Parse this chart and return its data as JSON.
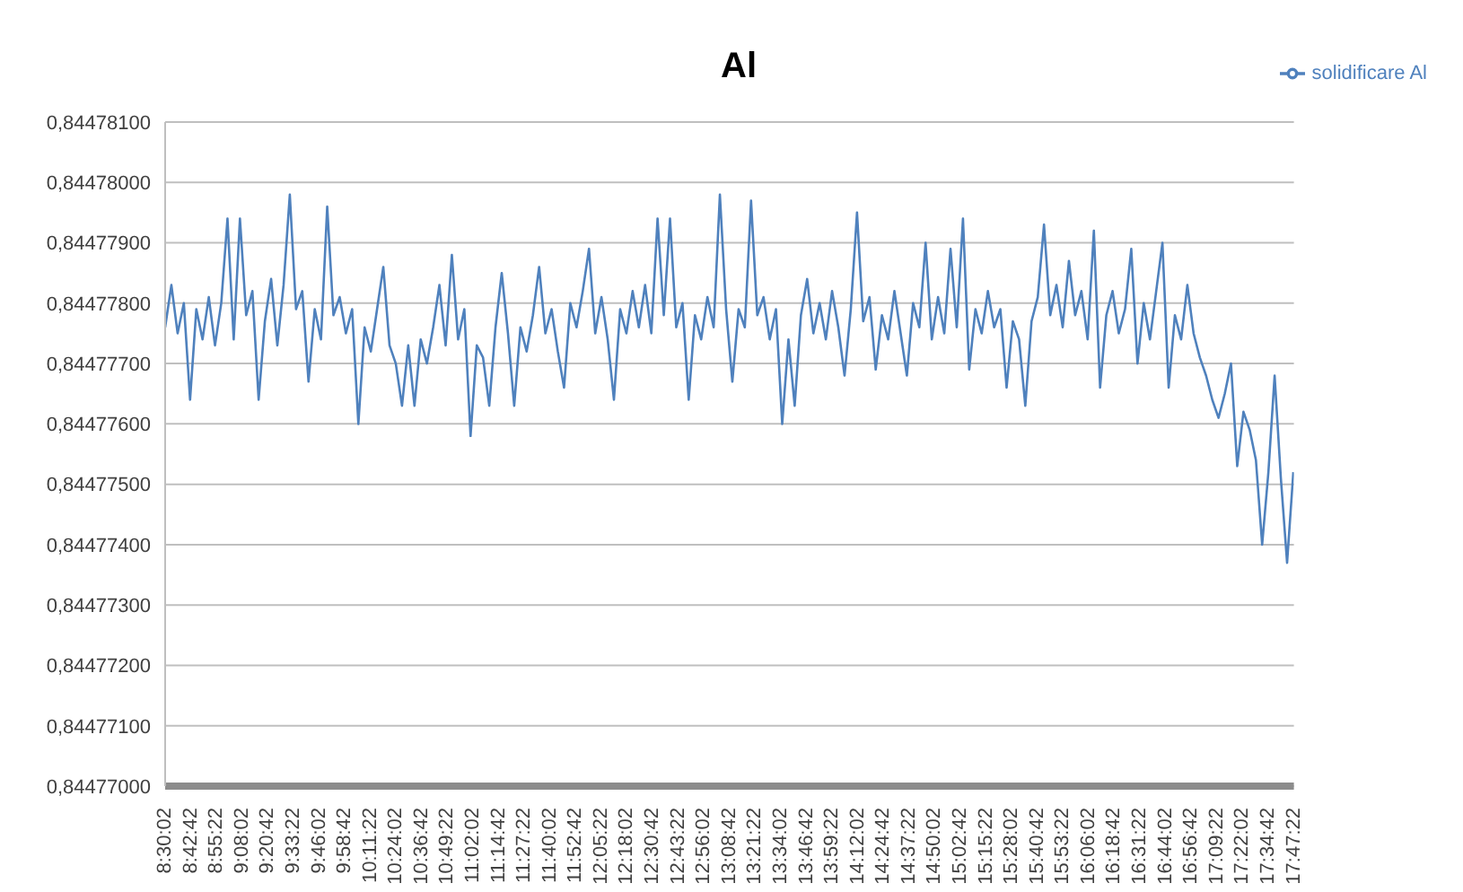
{
  "chart_data": {
    "type": "line",
    "title": "Al",
    "legend": "top right",
    "grid": "y",
    "xlim": [
      8.5,
      17.79
    ],
    "xticks": [
      {
        "value": 8.5006,
        "label": "8:30:02"
      },
      {
        "value": 8.7117,
        "label": "8:42:42"
      },
      {
        "value": 8.9228,
        "label": "8:55:22"
      },
      {
        "value": 9.1339,
        "label": "9:08:02"
      },
      {
        "value": 9.345,
        "label": "9:20:42"
      },
      {
        "value": 9.5561,
        "label": "9:33:22"
      },
      {
        "value": 9.7672,
        "label": "9:46:02"
      },
      {
        "value": 9.9783,
        "label": "9:58:42"
      },
      {
        "value": 10.1894,
        "label": "10:11:22"
      },
      {
        "value": 10.4006,
        "label": "10:24:02"
      },
      {
        "value": 10.6117,
        "label": "10:36:42"
      },
      {
        "value": 10.8228,
        "label": "10:49:22"
      },
      {
        "value": 11.0339,
        "label": "11:02:02"
      },
      {
        "value": 11.245,
        "label": "11:14:42"
      },
      {
        "value": 11.4561,
        "label": "11:27:22"
      },
      {
        "value": 11.6672,
        "label": "11:40:02"
      },
      {
        "value": 11.8783,
        "label": "11:52:42"
      },
      {
        "value": 12.0894,
        "label": "12:05:22"
      },
      {
        "value": 12.3006,
        "label": "12:18:02"
      },
      {
        "value": 12.5117,
        "label": "12:30:42"
      },
      {
        "value": 12.7228,
        "label": "12:43:22"
      },
      {
        "value": 12.9339,
        "label": "12:56:02"
      },
      {
        "value": 13.145,
        "label": "13:08:42"
      },
      {
        "value": 13.3561,
        "label": "13:21:22"
      },
      {
        "value": 13.5672,
        "label": "13:34:02"
      },
      {
        "value": 13.7783,
        "label": "13:46:42"
      },
      {
        "value": 13.9894,
        "label": "13:59:22"
      },
      {
        "value": 14.2006,
        "label": "14:12:02"
      },
      {
        "value": 14.4117,
        "label": "14:24:42"
      },
      {
        "value": 14.6228,
        "label": "14:37:22"
      },
      {
        "value": 14.8339,
        "label": "14:50:02"
      },
      {
        "value": 15.045,
        "label": "15:02:42"
      },
      {
        "value": 15.2561,
        "label": "15:15:22"
      },
      {
        "value": 15.4672,
        "label": "15:28:02"
      },
      {
        "value": 15.6783,
        "label": "15:40:42"
      },
      {
        "value": 15.8894,
        "label": "15:53:22"
      },
      {
        "value": 16.1006,
        "label": "16:06:02"
      },
      {
        "value": 16.3117,
        "label": "16:18:42"
      },
      {
        "value": 16.5228,
        "label": "16:31:22"
      },
      {
        "value": 16.7339,
        "label": "16:44:02"
      },
      {
        "value": 16.945,
        "label": "16:56:42"
      },
      {
        "value": 17.1561,
        "label": "17:09:22"
      },
      {
        "value": 17.3672,
        "label": "17:22:02"
      },
      {
        "value": 17.5783,
        "label": "17:34:42"
      },
      {
        "value": 17.7894,
        "label": "17:47:22"
      }
    ],
    "ylim": [
      0.84477,
      0.844781
    ],
    "yticks": [
      {
        "value": 0.84477,
        "label": "0,84477000"
      },
      {
        "value": 0.844771,
        "label": "0,84477100"
      },
      {
        "value": 0.844772,
        "label": "0,84477200"
      },
      {
        "value": 0.844773,
        "label": "0,84477300"
      },
      {
        "value": 0.844774,
        "label": "0,84477400"
      },
      {
        "value": 0.844775,
        "label": "0,84477500"
      },
      {
        "value": 0.844776,
        "label": "0,84477600"
      },
      {
        "value": 0.844777,
        "label": "0,84477700"
      },
      {
        "value": 0.844778,
        "label": "0,84477800"
      },
      {
        "value": 0.844779,
        "label": "0,84477900"
      },
      {
        "value": 0.84478,
        "label": "0,84478000"
      },
      {
        "value": 0.844781,
        "label": "0,84478100"
      }
    ],
    "x": [
      8.5,
      8.5513,
      8.6026,
      8.6539,
      8.7052,
      8.7565,
      8.8078,
      8.8591,
      8.9104,
      8.9617,
      9.013,
      9.0643,
      9.1156,
      9.1669,
      9.2182,
      9.2695,
      9.3208,
      9.3721,
      9.4234,
      9.4747,
      9.526,
      9.5773,
      9.6286,
      9.6799,
      9.7312,
      9.7825,
      9.8338,
      9.8851,
      9.9364,
      9.9877,
      10.039,
      10.0903,
      10.1416,
      10.1929,
      10.2442,
      10.2955,
      10.3468,
      10.3981,
      10.4494,
      10.5007,
      10.552,
      10.6033,
      10.6546,
      10.7059,
      10.7572,
      10.8085,
      10.8598,
      10.9111,
      10.9624,
      11.0137,
      11.065,
      11.1163,
      11.1676,
      11.2189,
      11.2702,
      11.3215,
      11.3728,
      11.4241,
      11.4754,
      11.5267,
      11.578,
      11.6293,
      11.6806,
      11.7319,
      11.7832,
      11.8345,
      11.8858,
      11.9371,
      11.9884,
      12.0397,
      12.091,
      12.1423,
      12.1936,
      12.2449,
      12.2962,
      12.3475,
      12.3988,
      12.4501,
      12.5014,
      12.5527,
      12.604,
      12.6553,
      12.7066,
      12.7579,
      12.8092,
      12.8605,
      12.9118,
      12.9631,
      13.0144,
      13.0657,
      13.117,
      13.1683,
      13.2196,
      13.2709,
      13.3222,
      13.3735,
      13.4248,
      13.4761,
      13.5274,
      13.5787,
      13.63,
      13.6813,
      13.7326,
      13.7839,
      13.8352,
      13.8865,
      13.9378,
      13.9891,
      14.0404,
      14.0917,
      14.143,
      14.1943,
      14.2456,
      14.2969,
      14.3482,
      14.3995,
      14.4508,
      14.5021,
      14.5534,
      14.6047,
      14.656,
      14.7073,
      14.7586,
      14.8099,
      14.8612,
      14.9125,
      14.9638,
      15.0151,
      15.0664,
      15.1177,
      15.169,
      15.2203,
      15.2716,
      15.3229,
      15.3742,
      15.4255,
      15.4768,
      15.5281,
      15.5794,
      15.6307,
      15.682,
      15.7333,
      15.7846,
      15.8359,
      15.8872,
      15.9385,
      15.9898,
      16.0411,
      16.0924,
      16.1437,
      16.195,
      16.2463,
      16.2976,
      16.3489,
      16.4002,
      16.4515,
      16.5028,
      16.5541,
      16.6054,
      16.6567,
      16.708,
      16.7593,
      16.8106,
      16.8619,
      16.9132,
      16.9645,
      17.0158,
      17.0671,
      17.1184,
      17.1697,
      17.221,
      17.2723,
      17.3236,
      17.3749,
      17.4262,
      17.4775,
      17.5288,
      17.5801,
      17.6314,
      17.6827,
      17.734,
      17.7853
    ],
    "series": [
      {
        "name": "solidificare Al",
        "color": "#4f81bd",
        "values": [
          0.8447776,
          0.8447783,
          0.8447775,
          0.844778,
          0.8447764,
          0.8447779,
          0.8447774,
          0.8447781,
          0.8447773,
          0.844778,
          0.8447794,
          0.8447774,
          0.8447794,
          0.8447778,
          0.8447782,
          0.8447764,
          0.8447777,
          0.8447784,
          0.8447773,
          0.8447783,
          0.8447798,
          0.8447779,
          0.8447782,
          0.8447767,
          0.8447779,
          0.8447774,
          0.8447796,
          0.8447778,
          0.8447781,
          0.8447775,
          0.8447779,
          0.844776,
          0.8447776,
          0.8447772,
          0.8447779,
          0.8447786,
          0.8447773,
          0.844777,
          0.8447763,
          0.8447773,
          0.8447763,
          0.8447774,
          0.844777,
          0.8447776,
          0.8447783,
          0.8447773,
          0.8447788,
          0.8447774,
          0.8447779,
          0.8447758,
          0.8447773,
          0.8447771,
          0.8447763,
          0.8447776,
          0.8447785,
          0.8447775,
          0.8447763,
          0.8447776,
          0.8447772,
          0.8447778,
          0.8447786,
          0.8447775,
          0.8447779,
          0.8447772,
          0.8447766,
          0.844778,
          0.8447776,
          0.8447782,
          0.8447789,
          0.8447775,
          0.8447781,
          0.8447774,
          0.8447764,
          0.8447779,
          0.8447775,
          0.8447782,
          0.8447776,
          0.8447783,
          0.8447775,
          0.8447794,
          0.8447778,
          0.8447794,
          0.8447776,
          0.844778,
          0.8447764,
          0.8447778,
          0.8447774,
          0.8447781,
          0.8447776,
          0.8447798,
          0.8447779,
          0.8447767,
          0.8447779,
          0.8447776,
          0.8447797,
          0.8447778,
          0.8447781,
          0.8447774,
          0.8447779,
          0.844776,
          0.8447774,
          0.8447763,
          0.8447778,
          0.8447784,
          0.8447775,
          0.844778,
          0.8447774,
          0.8447782,
          0.8447776,
          0.8447768,
          0.8447779,
          0.8447795,
          0.8447777,
          0.8447781,
          0.8447769,
          0.8447778,
          0.8447774,
          0.8447782,
          0.8447775,
          0.8447768,
          0.844778,
          0.8447776,
          0.844779,
          0.8447774,
          0.8447781,
          0.8447775,
          0.8447789,
          0.8447776,
          0.8447794,
          0.8447769,
          0.8447779,
          0.8447775,
          0.8447782,
          0.8447776,
          0.8447779,
          0.8447766,
          0.8447777,
          0.8447774,
          0.8447763,
          0.8447777,
          0.8447781,
          0.8447793,
          0.8447778,
          0.8447783,
          0.8447776,
          0.8447787,
          0.8447778,
          0.8447782,
          0.8447774,
          0.8447792,
          0.8447766,
          0.8447778,
          0.8447782,
          0.8447775,
          0.8447779,
          0.8447789,
          0.844777,
          0.844778,
          0.8447774,
          0.8447782,
          0.844779,
          0.8447766,
          0.8447778,
          0.8447774,
          0.8447783,
          0.8447775,
          0.8447771,
          0.8447768,
          0.8447764,
          0.8447761,
          0.8447765,
          0.844777,
          0.8447753,
          0.8447762,
          0.8447759,
          0.8447754,
          0.844774,
          0.8447752,
          0.8447768,
          0.8447751,
          0.8447737,
          0.8447752
        ]
      }
    ]
  }
}
